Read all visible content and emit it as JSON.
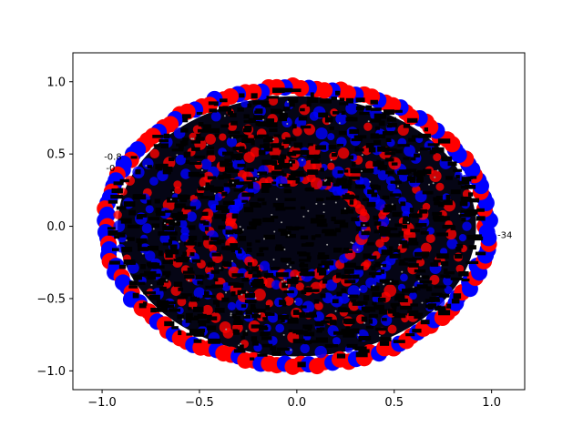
{
  "chart_data": {
    "type": "scatter",
    "title": "",
    "xlabel": "",
    "ylabel": "",
    "xlim": [
      -1.15,
      1.17
    ],
    "ylim": [
      -1.13,
      1.2
    ],
    "grid": false,
    "xticks": [
      -1.0,
      -0.5,
      0.0,
      0.5,
      1.0
    ],
    "yticks": [
      -1.0,
      -0.5,
      0.0,
      0.5,
      1.0
    ],
    "xtick_labels": [
      "−1.0",
      "−0.5",
      "0.0",
      "0.5",
      "1.0"
    ],
    "ytick_labels": [
      "−1.0",
      "−0.5",
      "0.0",
      "0.5",
      "1.0"
    ],
    "series": [
      {
        "color": "#ff0000",
        "marker": "circle",
        "description_points": "outer ring, denser on top and bottom edges"
      },
      {
        "color": "#0000ff",
        "marker": "circle",
        "description_points": "outer ring, denser on left and right edges"
      },
      {
        "color": "#000000",
        "marker": "text",
        "description_points": "overlapping dense labels filling interior"
      }
    ],
    "ring": {
      "center": [
        0.0,
        0.0
      ],
      "rx": 1.0,
      "ry": 0.98
    },
    "annotations": [
      {
        "text": "-0.8",
        "x": -0.99,
        "y": 0.46
      },
      {
        "text": "-0",
        "x": -0.98,
        "y": 0.38
      },
      {
        "text": "-34",
        "x": 1.03,
        "y": -0.08
      }
    ]
  }
}
